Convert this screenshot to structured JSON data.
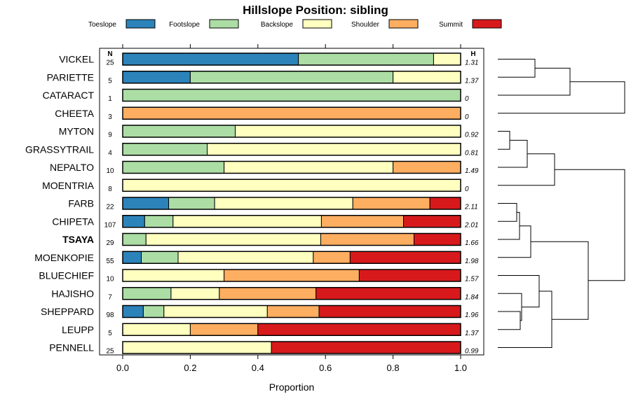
{
  "chart_data": {
    "type": "bar",
    "orientation": "horizontal",
    "stacked": true,
    "title": "Hillslope Position: sibling",
    "xlabel": "Proportion",
    "xlim": [
      0,
      1
    ],
    "x_ticks": [
      "0.0",
      "0.2",
      "0.4",
      "0.6",
      "0.8",
      "1.0"
    ],
    "n_header": "N",
    "h_header": "H",
    "legend": [
      {
        "name": "Toeslope",
        "color": "#2b83ba"
      },
      {
        "name": "Footslope",
        "color": "#abdda4"
      },
      {
        "name": "Backslope",
        "color": "#ffffbf"
      },
      {
        "name": "Shoulder",
        "color": "#fdae61"
      },
      {
        "name": "Summit",
        "color": "#d7191c"
      }
    ],
    "highlighted": "TSAYA",
    "rows": [
      {
        "name": "VICKEL",
        "n": "25",
        "h": "1.31",
        "values": [
          0.52,
          0.4,
          0.08,
          0,
          0
        ]
      },
      {
        "name": "PARIETTE",
        "n": "5",
        "h": "1.37",
        "values": [
          0.2,
          0.6,
          0.2,
          0,
          0
        ]
      },
      {
        "name": "CATARACT",
        "n": "1",
        "h": "0",
        "values": [
          0,
          1.0,
          0,
          0,
          0
        ]
      },
      {
        "name": "CHEETA",
        "n": "3",
        "h": "0",
        "values": [
          0,
          0,
          0,
          1.0,
          0
        ]
      },
      {
        "name": "MYTON",
        "n": "9",
        "h": "0.92",
        "values": [
          0,
          0.333,
          0.667,
          0,
          0
        ]
      },
      {
        "name": "GRASSYTRAIL",
        "n": "4",
        "h": "0.81",
        "values": [
          0,
          0.25,
          0.75,
          0,
          0
        ]
      },
      {
        "name": "NEPALTO",
        "n": "10",
        "h": "1.49",
        "values": [
          0,
          0.3,
          0.5,
          0.2,
          0
        ]
      },
      {
        "name": "MOENTRIA",
        "n": "8",
        "h": "0",
        "values": [
          0,
          0,
          1.0,
          0,
          0
        ]
      },
      {
        "name": "FARB",
        "n": "22",
        "h": "2.11",
        "values": [
          0.136,
          0.136,
          0.409,
          0.228,
          0.091
        ]
      },
      {
        "name": "CHIPETA",
        "n": "107",
        "h": "2.01",
        "values": [
          0.065,
          0.084,
          0.439,
          0.243,
          0.169
        ]
      },
      {
        "name": "TSAYA",
        "n": "29",
        "h": "1.66",
        "values": [
          0,
          0.069,
          0.517,
          0.276,
          0.138
        ]
      },
      {
        "name": "MOENKOPIE",
        "n": "55",
        "h": "1.98",
        "values": [
          0.055,
          0.109,
          0.4,
          0.109,
          0.327
        ]
      },
      {
        "name": "BLUECHIEF",
        "n": "10",
        "h": "1.57",
        "values": [
          0,
          0,
          0.3,
          0.4,
          0.3
        ]
      },
      {
        "name": "HAJISHO",
        "n": "7",
        "h": "1.84",
        "values": [
          0,
          0.143,
          0.143,
          0.286,
          0.428
        ]
      },
      {
        "name": "SHEPPARD",
        "n": "98",
        "h": "1.96",
        "values": [
          0.061,
          0.061,
          0.306,
          0.153,
          0.419
        ]
      },
      {
        "name": "LEUPP",
        "n": "5",
        "h": "1.37",
        "values": [
          0,
          0,
          0.2,
          0.2,
          0.6
        ]
      },
      {
        "name": "PENNELL",
        "n": "25",
        "h": "0.99",
        "values": [
          0,
          0,
          0.44,
          0,
          0.56
        ]
      }
    ]
  }
}
